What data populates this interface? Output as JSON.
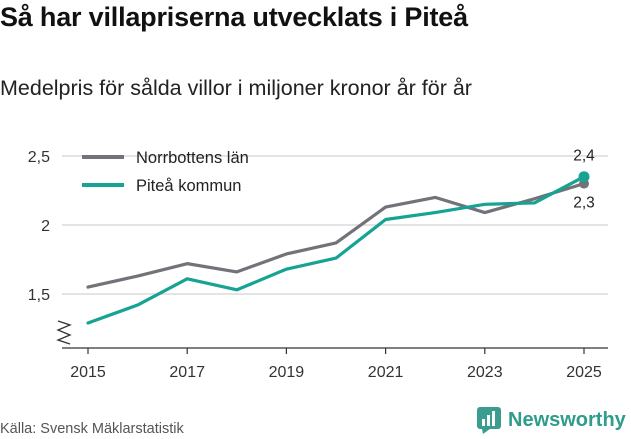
{
  "title": "Så har villapriserna utvecklats i Piteå",
  "subtitle": "Medelpris för sålda villor i miljoner kronor år för år",
  "source": "Källa: Svensk Mäklarstatistik",
  "brand": "Newsworthy",
  "colors": {
    "norrbotten": "#737278",
    "pitea": "#16a394",
    "grid": "#d4d4d4",
    "axis": "#333333",
    "brand": "#2f9c8c"
  },
  "chart_data": {
    "type": "line",
    "title": "Så har villapriserna utvecklats i Piteå",
    "subtitle": "Medelpris för sålda villor i miljoner kronor år för år",
    "xlabel": "",
    "ylabel": "",
    "x": [
      2015,
      2016,
      2017,
      2018,
      2019,
      2020,
      2021,
      2022,
      2023,
      2024,
      2025
    ],
    "xticks": [
      "2015",
      "2017",
      "2019",
      "2021",
      "2023",
      "2025"
    ],
    "yticks": [
      "1,5",
      "2",
      "2,5"
    ],
    "ylim": [
      1.1,
      2.6
    ],
    "y_axis_break": true,
    "legend_position": "top-left",
    "series": [
      {
        "name": "Norrbottens län",
        "key": "norrbotten",
        "values": [
          1.55,
          1.63,
          1.72,
          1.66,
          1.79,
          1.87,
          2.13,
          2.2,
          2.09,
          2.19,
          2.3
        ],
        "end_label": "2,3"
      },
      {
        "name": "Piteå kommun",
        "key": "pitea",
        "values": [
          1.29,
          1.42,
          1.61,
          1.53,
          1.68,
          1.76,
          2.04,
          2.09,
          2.15,
          2.16,
          2.35
        ],
        "end_label": "2,4"
      }
    ]
  }
}
